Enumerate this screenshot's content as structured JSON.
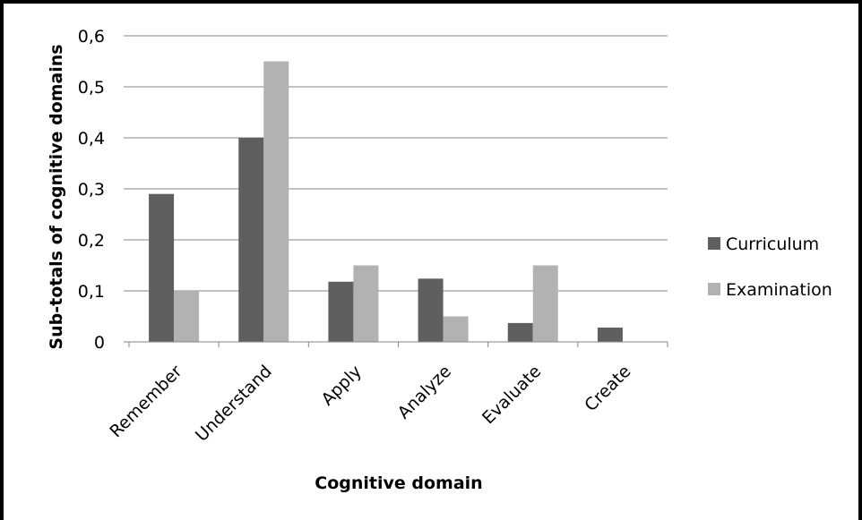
{
  "chart_data": {
    "type": "bar",
    "categories": [
      "Remember",
      "Understand",
      "Apply",
      "Analyze",
      "Evaluate",
      "Create"
    ],
    "series": [
      {
        "name": "Curriculum",
        "values": [
          0.29,
          0.4,
          0.118,
          0.124,
          0.037,
          0.028
        ],
        "color": "#5f5f5f"
      },
      {
        "name": "Examination",
        "values": [
          0.1,
          0.55,
          0.15,
          0.05,
          0.15,
          0.0
        ],
        "color": "#b2b2b2"
      }
    ],
    "xlabel": "Cognitive domain",
    "ylabel": "Sub-totals of cognitive domains",
    "ylim": [
      0,
      0.6
    ],
    "yticks": [
      0,
      0.1,
      0.2,
      0.3,
      0.4,
      0.5,
      0.6
    ],
    "ytick_labels": [
      "0",
      "0,1",
      "0,2",
      "0,3",
      "0,4",
      "0,5",
      "0,6"
    ],
    "grid": true,
    "legend_position": "right"
  }
}
